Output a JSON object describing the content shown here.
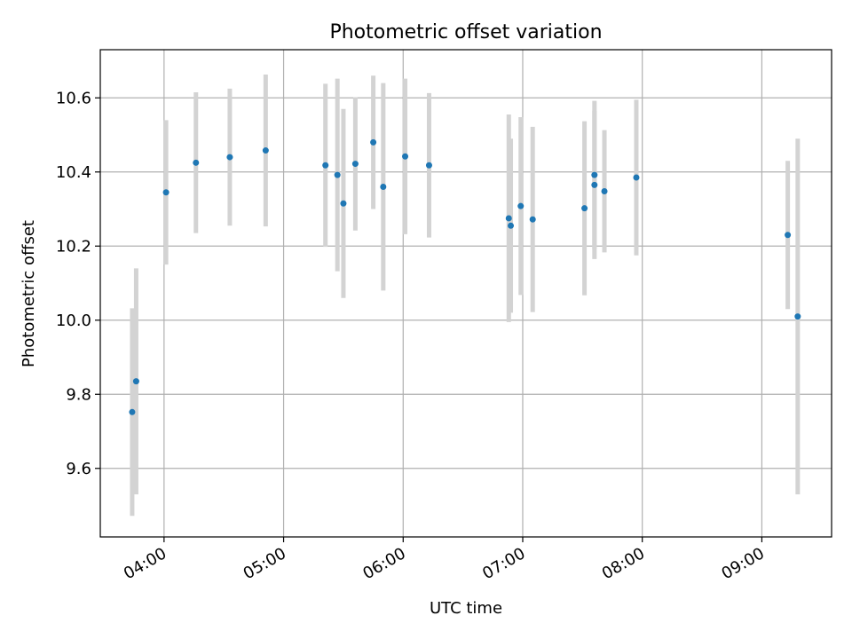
{
  "chart_data": {
    "type": "scatter",
    "title": "Photometric offset variation",
    "xlabel": "UTC time",
    "ylabel": "Photometric offset",
    "x_unit": "UTC clock time (HH:MM)",
    "xlim": [
      "03:28",
      "09:35"
    ],
    "ylim": [
      9.415,
      10.73
    ],
    "x_ticks": [
      "04:00",
      "05:00",
      "06:00",
      "07:00",
      "08:00",
      "09:00"
    ],
    "y_ticks": [
      9.6,
      9.8,
      10.0,
      10.2,
      10.4,
      10.6
    ],
    "grid": true,
    "legend": "none",
    "point_color": "#1f77b4",
    "errorbar_color": "#d3d3d3",
    "points": [
      {
        "x": "03:44",
        "y": 9.752,
        "yerr": 0.28
      },
      {
        "x": "03:46",
        "y": 9.835,
        "yerr": 0.305
      },
      {
        "x": "04:01",
        "y": 10.345,
        "yerr": 0.195
      },
      {
        "x": "04:16",
        "y": 10.425,
        "yerr": 0.19
      },
      {
        "x": "04:33",
        "y": 10.44,
        "yerr": 0.185
      },
      {
        "x": "04:51",
        "y": 10.458,
        "yerr": 0.205
      },
      {
        "x": "05:21",
        "y": 10.418,
        "yerr": 0.22
      },
      {
        "x": "05:27",
        "y": 10.392,
        "yerr": 0.26
      },
      {
        "x": "05:30",
        "y": 10.315,
        "yerr": 0.255
      },
      {
        "x": "05:36",
        "y": 10.422,
        "yerr": 0.18
      },
      {
        "x": "05:45",
        "y": 10.48,
        "yerr": 0.18
      },
      {
        "x": "05:50",
        "y": 10.36,
        "yerr": 0.28
      },
      {
        "x": "06:01",
        "y": 10.442,
        "yerr": 0.21
      },
      {
        "x": "06:13",
        "y": 10.418,
        "yerr": 0.195
      },
      {
        "x": "06:53",
        "y": 10.275,
        "yerr": 0.28
      },
      {
        "x": "06:54",
        "y": 10.255,
        "yerr": 0.235
      },
      {
        "x": "06:59",
        "y": 10.308,
        "yerr": 0.24
      },
      {
        "x": "07:05",
        "y": 10.272,
        "yerr": 0.25
      },
      {
        "x": "07:31",
        "y": 10.302,
        "yerr": 0.235
      },
      {
        "x": "07:36",
        "y": 10.392,
        "yerr": 0.2
      },
      {
        "x": "07:36",
        "y": 10.365,
        "yerr": 0.2
      },
      {
        "x": "07:41",
        "y": 10.348,
        "yerr": 0.165
      },
      {
        "x": "07:57",
        "y": 10.385,
        "yerr": 0.21
      },
      {
        "x": "09:13",
        "y": 10.23,
        "yerr": 0.2
      },
      {
        "x": "09:18",
        "y": 10.01,
        "yerr": 0.48
      }
    ]
  }
}
